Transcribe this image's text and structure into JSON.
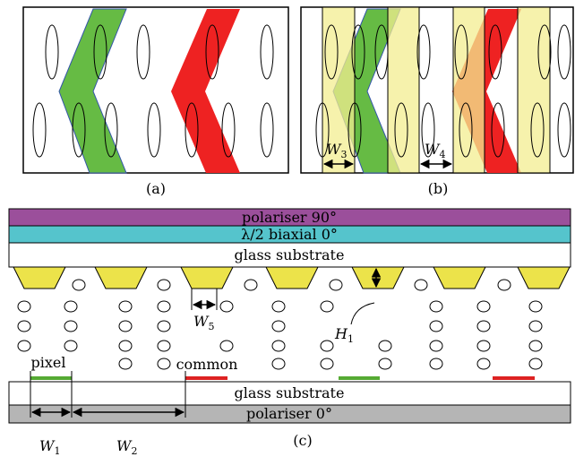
{
  "panels": {
    "a": {
      "label": "(a)"
    },
    "b": {
      "label": "(b)",
      "w3": {
        "main": "W",
        "sub": "3"
      },
      "w4": {
        "main": "W",
        "sub": "4"
      }
    },
    "c": {
      "label": "(c)",
      "layers": {
        "top_polariser": "polariser 90°",
        "retarder": "λ/2 biaxial 0°",
        "top_glass": "glass substrate",
        "bottom_glass": "glass substrate",
        "bottom_polariser": "polariser 0°"
      },
      "electrodes": {
        "pixel": "pixel",
        "common": "common"
      },
      "w1": {
        "main": "W",
        "sub": "1"
      },
      "w2": {
        "main": "W",
        "sub": "2"
      },
      "w5": {
        "main": "W",
        "sub": "5"
      },
      "h1": {
        "main": "H",
        "sub": "1"
      }
    }
  }
}
